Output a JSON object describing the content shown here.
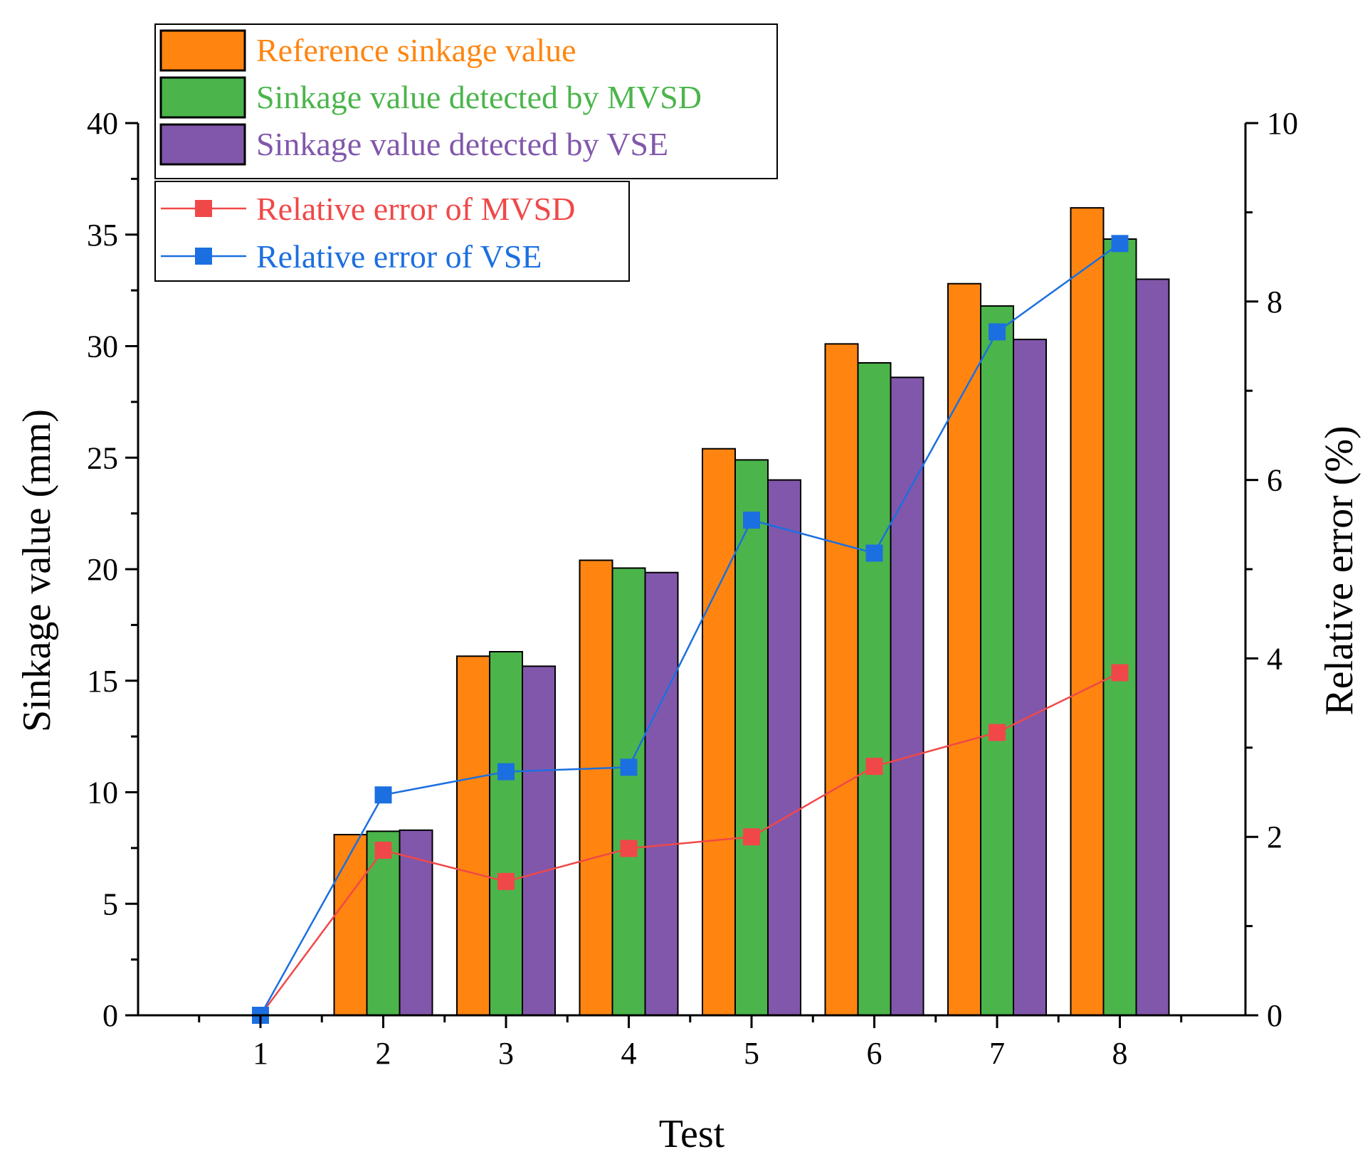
{
  "chart_data": {
    "type": "bar",
    "xlabel": "Test",
    "ylabel": "Sinkage value (mm)",
    "y2label": "Relative error (%)",
    "categories": [
      "1",
      "2",
      "3",
      "4",
      "5",
      "6",
      "7",
      "8"
    ],
    "ylim": [
      0,
      40
    ],
    "y2lim": [
      0,
      10
    ],
    "yticks": [
      "0",
      "5",
      "10",
      "15",
      "20",
      "25",
      "30",
      "35",
      "40"
    ],
    "y2ticks": [
      "0",
      "2",
      "4",
      "6",
      "8",
      "10"
    ],
    "grid": false,
    "bar_series": [
      {
        "name": "Reference sinkage value",
        "color": "#FF8510",
        "values": [
          0,
          8.1,
          16.1,
          20.4,
          25.4,
          30.1,
          32.8,
          36.2
        ]
      },
      {
        "name": "Sinkage value detected by MVSD",
        "color": "#4BB54B",
        "values": [
          0,
          8.25,
          16.3,
          20.05,
          24.9,
          29.25,
          31.8,
          34.8
        ]
      },
      {
        "name": "Sinkage value detected by VSE",
        "color": "#8157AB",
        "values": [
          0,
          8.3,
          15.65,
          19.85,
          24.0,
          28.6,
          30.3,
          33.0
        ]
      }
    ],
    "line_series": [
      {
        "name": "Relative error of MVSD",
        "color": "#F04848",
        "axis": "right",
        "values": [
          0,
          1.85,
          1.5,
          1.87,
          2.0,
          2.79,
          3.17,
          3.84
        ]
      },
      {
        "name": "Relative error of VSE",
        "color": "#1C6FE0",
        "axis": "right",
        "values": [
          0,
          2.47,
          2.73,
          2.78,
          5.55,
          5.18,
          7.66,
          8.65
        ]
      }
    ],
    "legend_position": "top-left"
  }
}
